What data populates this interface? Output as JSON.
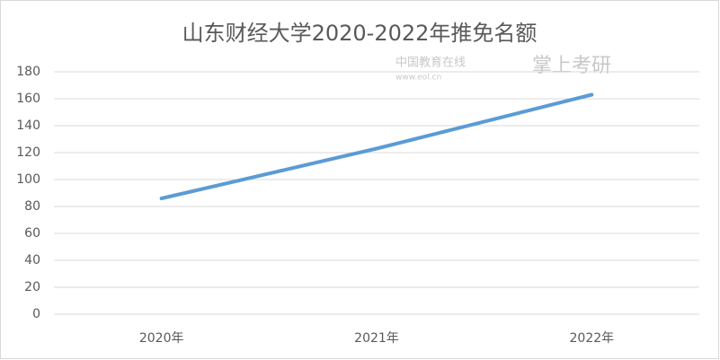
{
  "chart_data": {
    "type": "line",
    "title": "山东财经大学2020-2022年推免名额",
    "categories": [
      "2020年",
      "2021年",
      "2022年"
    ],
    "series": [
      {
        "color": "#5b9bd5",
        "values": [
          86,
          123,
          163
        ]
      }
    ],
    "ylim": [
      0,
      180
    ],
    "yticks": [
      0,
      20,
      40,
      60,
      80,
      100,
      120,
      140,
      160,
      180
    ],
    "grid": true
  },
  "watermarks": [
    "中国教育在线",
    "www.eol.cn",
    "掌上考研"
  ]
}
